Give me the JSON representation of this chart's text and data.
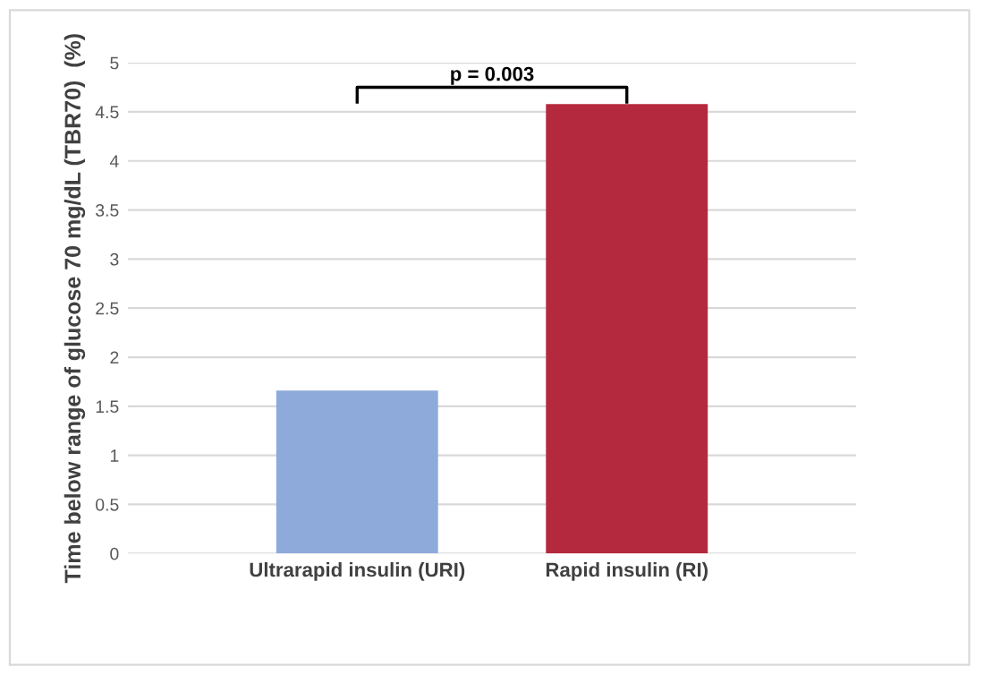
{
  "chart_data": {
    "type": "bar",
    "ylabel": "Time below range of glucose 70 mg/dL (TBR70)  (%)",
    "categories": [
      "Ultrarapid insulin (URI)",
      "Rapid insulin (RI)"
    ],
    "values": [
      1.66,
      4.58
    ],
    "colors": [
      "#8eaadb",
      "#b5293e"
    ],
    "ylim": [
      0,
      5
    ],
    "yticks": [
      0,
      0.5,
      1,
      1.5,
      2,
      2.5,
      3,
      3.5,
      4,
      4.5,
      5
    ],
    "grid": "y",
    "annotations": [
      "p = 0.003"
    ]
  }
}
